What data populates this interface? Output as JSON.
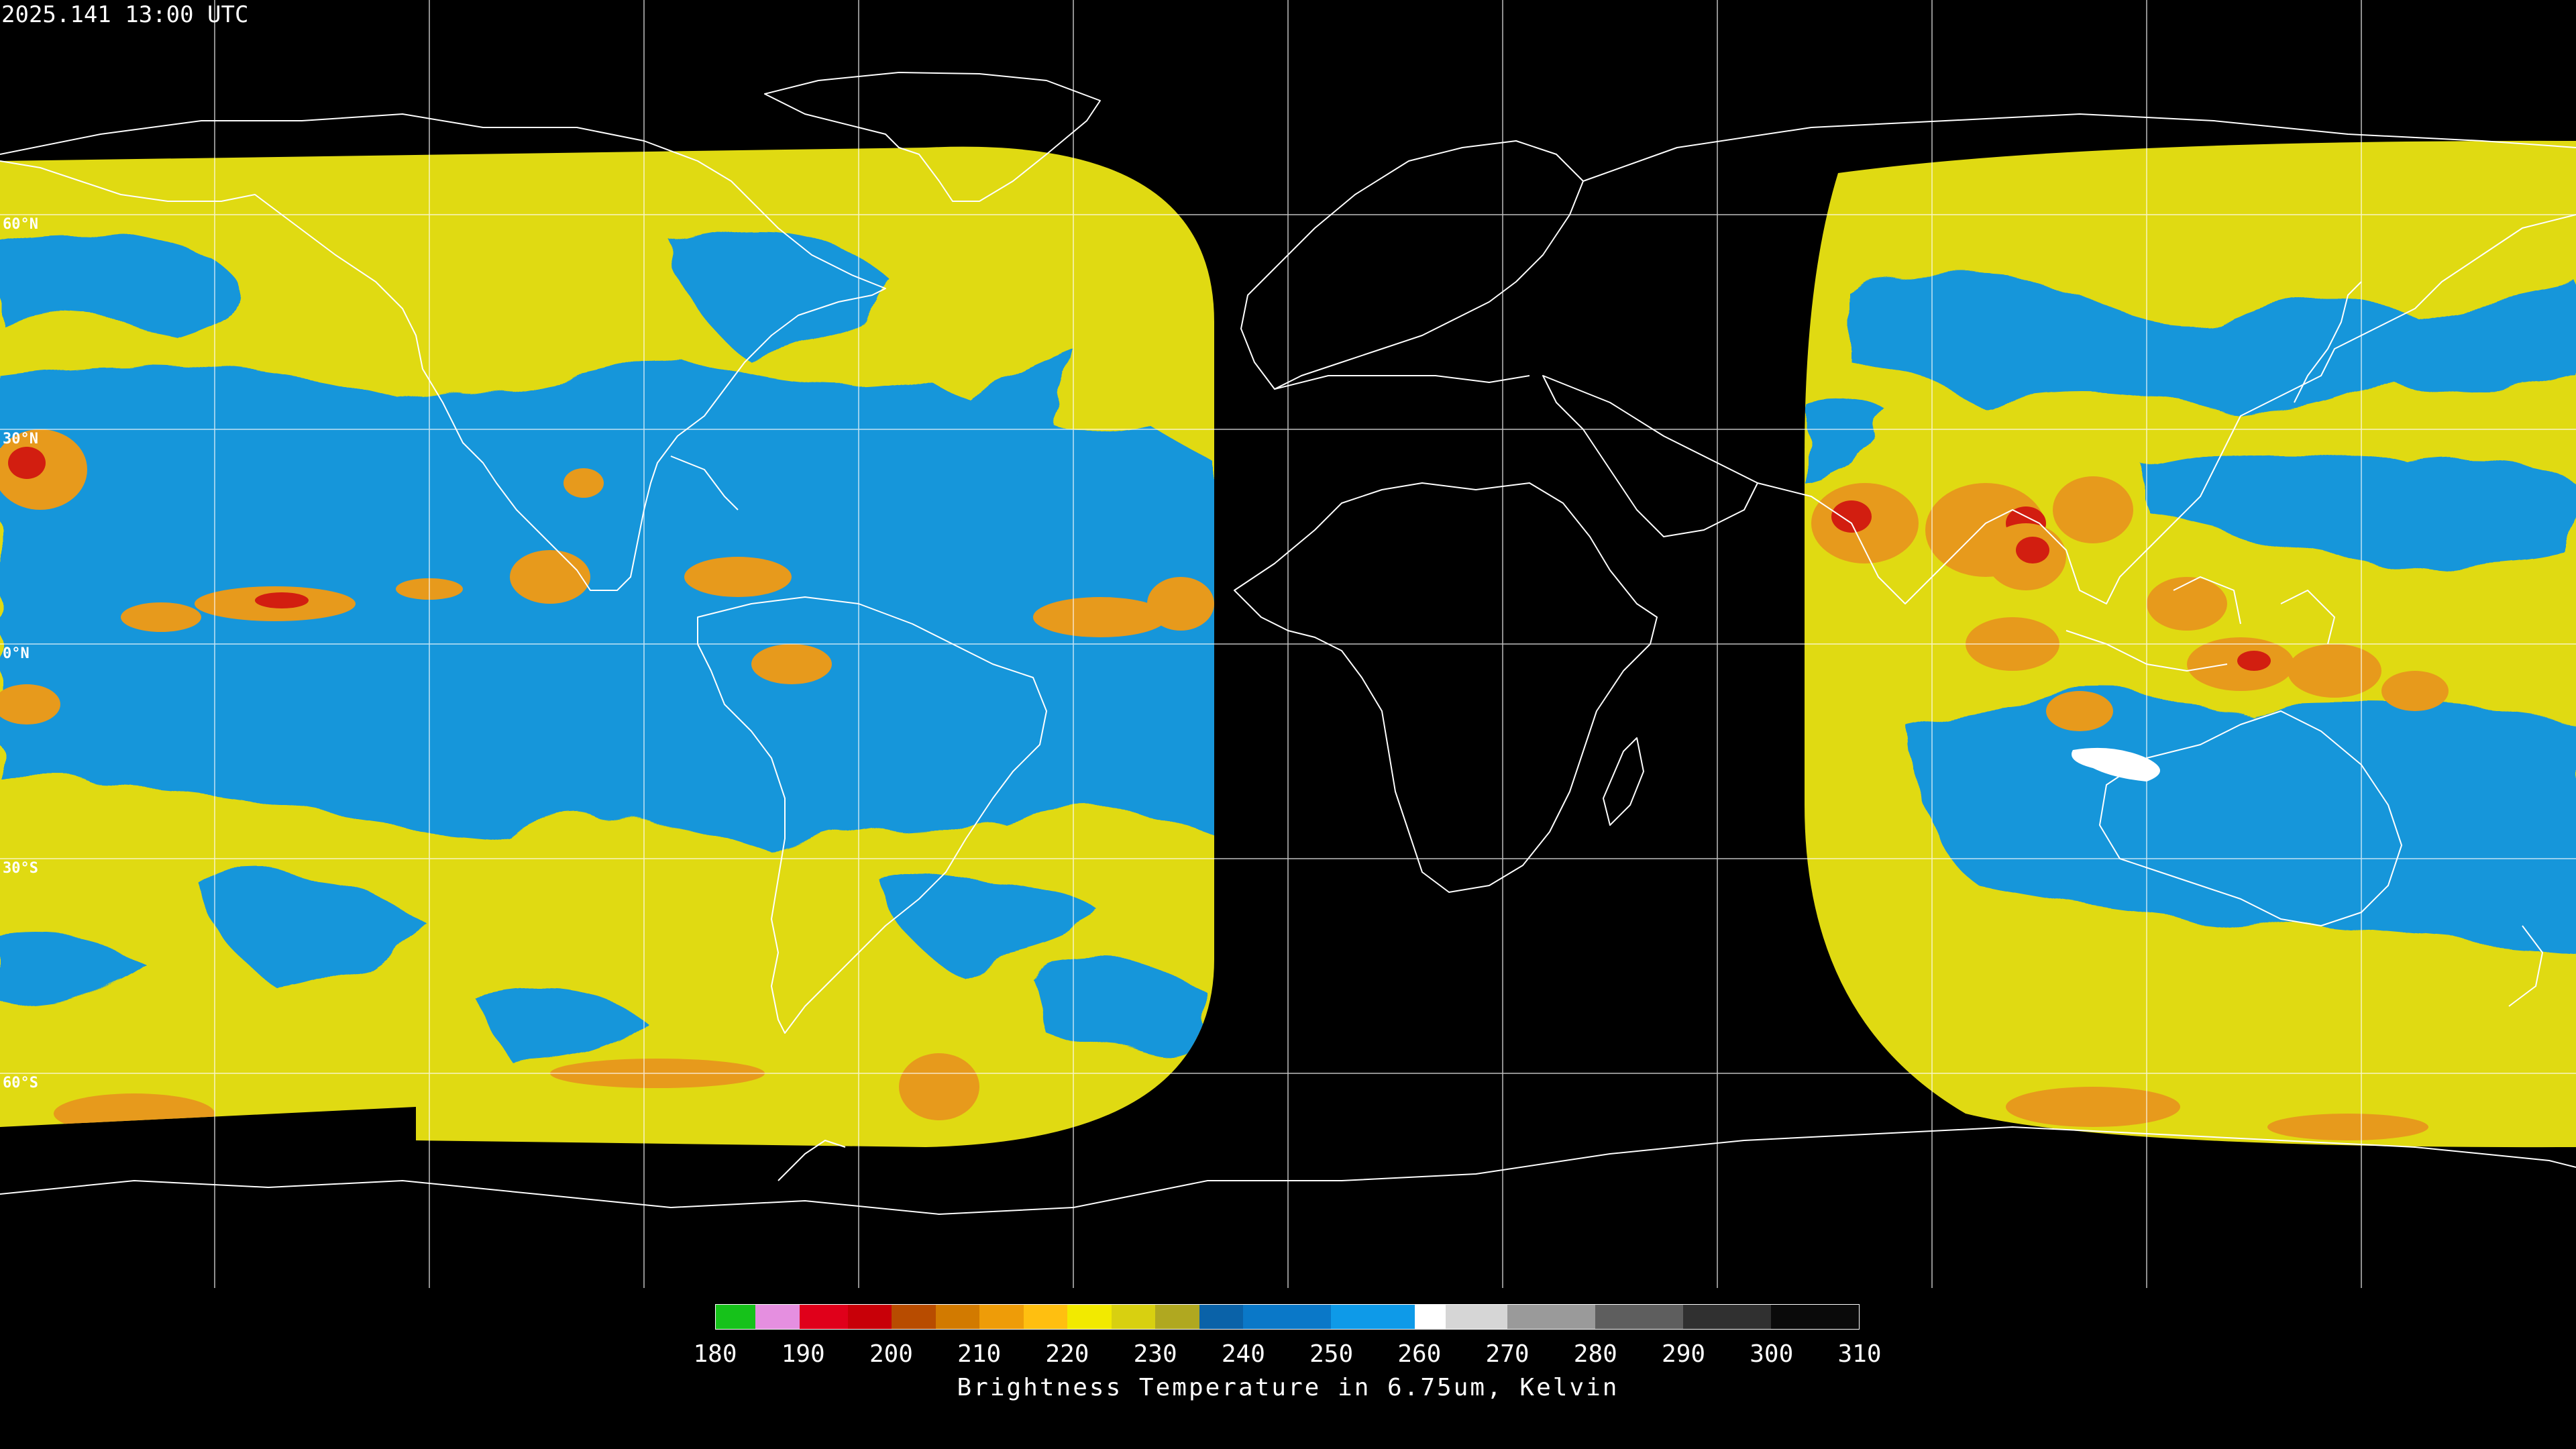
{
  "timestamp": "2025.141 13:00 UTC",
  "lat_labels": [
    "60°N",
    "30°N",
    "0°N",
    "30°S",
    "60°S"
  ],
  "colorbar": {
    "title": "Brightness Temperature in 6.75um, Kelvin",
    "ticks": [
      "180",
      "190",
      "200",
      "210",
      "220",
      "230",
      "240",
      "250",
      "260",
      "270",
      "280",
      "290",
      "300",
      "310"
    ],
    "range_k": [
      180,
      310
    ],
    "stops": [
      {
        "from": 180,
        "to": 184.5,
        "color": "#16c21a"
      },
      {
        "from": 184.5,
        "to": 189.5,
        "color": "#e58fe0"
      },
      {
        "from": 189.5,
        "to": 195,
        "color": "#e0001a"
      },
      {
        "from": 195,
        "to": 200,
        "color": "#c80008"
      },
      {
        "from": 200,
        "to": 205,
        "color": "#b84c00"
      },
      {
        "from": 205,
        "to": 210,
        "color": "#d27a00"
      },
      {
        "from": 210,
        "to": 215,
        "color": "#ee9c08"
      },
      {
        "from": 215,
        "to": 220,
        "color": "#ffbf10"
      },
      {
        "from": 220,
        "to": 225,
        "color": "#f2ea00"
      },
      {
        "from": 225,
        "to": 230,
        "color": "#d8d010"
      },
      {
        "from": 230,
        "to": 235,
        "color": "#b0a820"
      },
      {
        "from": 235,
        "to": 240,
        "color": "#0a62a8"
      },
      {
        "from": 240,
        "to": 250,
        "color": "#0a78c8"
      },
      {
        "from": 250,
        "to": 259.5,
        "color": "#0e9ae8"
      },
      {
        "from": 259.5,
        "to": 263,
        "color": "#ffffff"
      },
      {
        "from": 263,
        "to": 270,
        "color": "#d6d6d6"
      },
      {
        "from": 270,
        "to": 280,
        "color": "#9a9a9a"
      },
      {
        "from": 280,
        "to": 290,
        "color": "#5e5e5e"
      },
      {
        "from": 290,
        "to": 300,
        "color": "#303030"
      },
      {
        "from": 300,
        "to": 310,
        "color": "#0a0a0a"
      }
    ]
  },
  "colors": {
    "background": "#000000",
    "grid": "#ffffff",
    "coastline": "#ffffff",
    "dry_blue": "#1596da",
    "moist_yellow": "#e2dc10",
    "cloud_orange": "#e79a1c",
    "cloud_red": "#d21e10",
    "warm_white": "#ffffff"
  }
}
